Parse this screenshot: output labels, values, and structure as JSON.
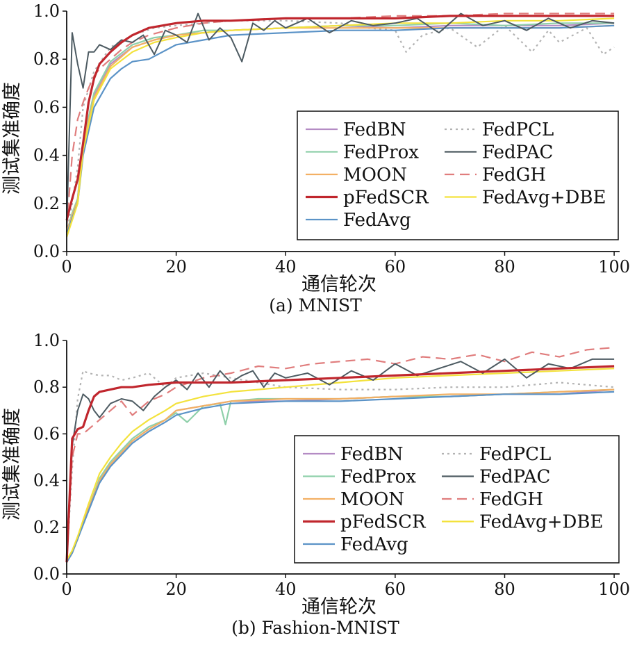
{
  "chart_data": [
    {
      "type": "line",
      "caption": "(a) MNIST",
      "xlabel": "通信轮次",
      "ylabel": "测试集准确度",
      "xlim": [
        0,
        101
      ],
      "ylim": [
        0,
        1.0
      ],
      "xticks": [
        0,
        20,
        40,
        60,
        80,
        100
      ],
      "yticks": [
        "0.0",
        "0.2",
        "0.4",
        "0.6",
        "0.8",
        "1.0"
      ],
      "grid": false,
      "legend_position": "bottom-right",
      "series": [
        {
          "name": "FedBN",
          "color": "#b48cc4",
          "style": "solid",
          "x": [
            0,
            1,
            2,
            3,
            5,
            8,
            12,
            16,
            20,
            25,
            30,
            40,
            50,
            60,
            70,
            80,
            90,
            100
          ],
          "y": [
            0.08,
            0.15,
            0.22,
            0.45,
            0.65,
            0.78,
            0.85,
            0.88,
            0.9,
            0.91,
            0.92,
            0.93,
            0.94,
            0.93,
            0.94,
            0.94,
            0.94,
            0.95
          ]
        },
        {
          "name": "FedProx",
          "color": "#8fd0aa",
          "style": "solid",
          "x": [
            0,
            1,
            2,
            3,
            5,
            8,
            12,
            16,
            20,
            25,
            30,
            40,
            50,
            60,
            70,
            80,
            90,
            100
          ],
          "y": [
            0.08,
            0.16,
            0.22,
            0.46,
            0.66,
            0.79,
            0.86,
            0.89,
            0.9,
            0.92,
            0.92,
            0.93,
            0.94,
            0.94,
            0.95,
            0.94,
            0.95,
            0.95
          ]
        },
        {
          "name": "MOON",
          "color": "#f3b064",
          "style": "solid",
          "x": [
            0,
            1,
            2,
            3,
            5,
            8,
            12,
            16,
            20,
            25,
            30,
            40,
            50,
            60,
            70,
            80,
            90,
            100
          ],
          "y": [
            0.08,
            0.15,
            0.21,
            0.44,
            0.64,
            0.77,
            0.85,
            0.88,
            0.9,
            0.91,
            0.92,
            0.93,
            0.93,
            0.93,
            0.93,
            0.93,
            0.93,
            0.94
          ]
        },
        {
          "name": "pFedSCR",
          "color": "#c0262d",
          "style": "solid",
          "x": [
            0,
            1,
            2,
            3,
            4,
            5,
            6,
            8,
            10,
            12,
            15,
            20,
            25,
            30,
            40,
            50,
            60,
            70,
            80,
            90,
            100
          ],
          "y": [
            0.13,
            0.22,
            0.3,
            0.45,
            0.62,
            0.72,
            0.78,
            0.83,
            0.87,
            0.9,
            0.93,
            0.95,
            0.96,
            0.96,
            0.97,
            0.97,
            0.97,
            0.98,
            0.98,
            0.98,
            0.98
          ]
        },
        {
          "name": "FedAvg",
          "color": "#5b93c7",
          "style": "solid",
          "x": [
            0,
            1,
            2,
            3,
            5,
            8,
            10,
            12,
            15,
            20,
            25,
            30,
            40,
            50,
            60,
            70,
            80,
            90,
            100
          ],
          "y": [
            0.07,
            0.14,
            0.2,
            0.4,
            0.6,
            0.72,
            0.76,
            0.79,
            0.8,
            0.86,
            0.88,
            0.9,
            0.91,
            0.92,
            0.92,
            0.93,
            0.93,
            0.93,
            0.94
          ]
        },
        {
          "name": "FedPCL",
          "color": "#b3b3b3",
          "style": "dotted",
          "x": [
            0,
            1,
            2,
            3,
            5,
            8,
            12,
            16,
            20,
            25,
            30,
            40,
            50,
            55,
            60,
            62,
            65,
            70,
            75,
            80,
            85,
            88,
            90,
            95,
            98,
            100
          ],
          "y": [
            0.08,
            0.2,
            0.35,
            0.6,
            0.75,
            0.85,
            0.9,
            0.93,
            0.94,
            0.95,
            0.96,
            0.96,
            0.95,
            0.93,
            0.92,
            0.83,
            0.9,
            0.93,
            0.85,
            0.94,
            0.83,
            0.92,
            0.87,
            0.93,
            0.82,
            0.85
          ]
        },
        {
          "name": "FedPAC",
          "color": "#4d5b62",
          "style": "solid",
          "x": [
            0,
            1,
            2,
            3,
            4,
            5,
            6,
            8,
            10,
            12,
            14,
            16,
            18,
            20,
            22,
            24,
            26,
            28,
            30,
            32,
            34,
            36,
            38,
            40,
            44,
            48,
            52,
            56,
            60,
            64,
            68,
            72,
            76,
            80,
            84,
            88,
            92,
            96,
            100
          ],
          "y": [
            0.1,
            0.91,
            0.78,
            0.68,
            0.83,
            0.83,
            0.86,
            0.84,
            0.88,
            0.87,
            0.9,
            0.82,
            0.92,
            0.9,
            0.87,
            0.99,
            0.88,
            0.93,
            0.89,
            0.79,
            0.95,
            0.92,
            0.96,
            0.93,
            0.97,
            0.91,
            0.96,
            0.94,
            0.95,
            0.97,
            0.91,
            0.99,
            0.94,
            0.96,
            0.92,
            0.97,
            0.93,
            0.96,
            0.95
          ]
        },
        {
          "name": "FedGH",
          "color": "#e07d7d",
          "style": "dashed",
          "x": [
            0,
            1,
            2,
            3,
            4,
            5,
            6,
            8,
            10,
            12,
            15,
            20,
            25,
            30,
            40,
            50,
            60,
            70,
            80,
            90,
            100
          ],
          "y": [
            0.1,
            0.4,
            0.55,
            0.62,
            0.68,
            0.73,
            0.76,
            0.8,
            0.84,
            0.87,
            0.9,
            0.93,
            0.95,
            0.96,
            0.97,
            0.97,
            0.98,
            0.98,
            0.99,
            0.99,
            0.99
          ]
        },
        {
          "name": "FedAvg+DBE",
          "color": "#f3e23c",
          "style": "solid",
          "x": [
            0,
            1,
            2,
            3,
            5,
            8,
            12,
            16,
            20,
            25,
            30,
            40,
            50,
            60,
            70,
            80,
            90,
            100
          ],
          "y": [
            0.06,
            0.13,
            0.2,
            0.42,
            0.63,
            0.76,
            0.83,
            0.87,
            0.89,
            0.91,
            0.92,
            0.93,
            0.94,
            0.95,
            0.95,
            0.96,
            0.96,
            0.97
          ]
        }
      ]
    },
    {
      "type": "line",
      "caption": "(b) Fashion-MNIST",
      "xlabel": "通信轮次",
      "ylabel": "测试集准确度",
      "xlim": [
        0,
        101
      ],
      "ylim": [
        0,
        1.0
      ],
      "xticks": [
        0,
        20,
        40,
        60,
        80,
        100
      ],
      "yticks": [
        "0.0",
        "0.2",
        "0.4",
        "0.6",
        "0.8",
        "1.0"
      ],
      "grid": false,
      "legend_position": "bottom-right",
      "series": [
        {
          "name": "FedBN",
          "color": "#b48cc4",
          "style": "solid",
          "x": [
            0,
            1,
            2,
            4,
            6,
            8,
            10,
            12,
            15,
            18,
            20,
            25,
            30,
            40,
            50,
            60,
            70,
            80,
            90,
            100
          ],
          "y": [
            0.05,
            0.09,
            0.15,
            0.28,
            0.4,
            0.47,
            0.52,
            0.57,
            0.62,
            0.66,
            0.7,
            0.72,
            0.74,
            0.74,
            0.75,
            0.76,
            0.76,
            0.77,
            0.77,
            0.79
          ]
        },
        {
          "name": "FedProx",
          "color": "#8fd0aa",
          "style": "solid",
          "x": [
            0,
            1,
            2,
            4,
            6,
            8,
            10,
            12,
            15,
            18,
            20,
            22,
            25,
            28,
            29,
            30,
            35,
            40,
            50,
            60,
            70,
            80,
            90,
            100
          ],
          "y": [
            0.05,
            0.09,
            0.15,
            0.28,
            0.41,
            0.48,
            0.53,
            0.58,
            0.63,
            0.66,
            0.69,
            0.65,
            0.72,
            0.73,
            0.64,
            0.74,
            0.75,
            0.75,
            0.75,
            0.76,
            0.76,
            0.77,
            0.78,
            0.79
          ]
        },
        {
          "name": "MOON",
          "color": "#f3b064",
          "style": "solid",
          "x": [
            0,
            1,
            2,
            4,
            6,
            8,
            10,
            12,
            15,
            18,
            20,
            25,
            30,
            40,
            50,
            60,
            70,
            80,
            90,
            100
          ],
          "y": [
            0.05,
            0.09,
            0.15,
            0.28,
            0.4,
            0.47,
            0.52,
            0.57,
            0.62,
            0.66,
            0.7,
            0.72,
            0.74,
            0.75,
            0.75,
            0.76,
            0.77,
            0.77,
            0.78,
            0.79
          ]
        },
        {
          "name": "pFedSCR",
          "color": "#c0262d",
          "style": "solid",
          "x": [
            0,
            1,
            2,
            3,
            4,
            5,
            6,
            8,
            10,
            12,
            15,
            20,
            25,
            30,
            40,
            50,
            60,
            70,
            80,
            90,
            100
          ],
          "y": [
            0.05,
            0.58,
            0.62,
            0.63,
            0.7,
            0.76,
            0.78,
            0.79,
            0.8,
            0.8,
            0.81,
            0.82,
            0.82,
            0.82,
            0.83,
            0.84,
            0.85,
            0.86,
            0.87,
            0.88,
            0.89
          ]
        },
        {
          "name": "FedAvg",
          "color": "#5b93c7",
          "style": "solid",
          "x": [
            0,
            1,
            2,
            4,
            6,
            8,
            10,
            12,
            15,
            18,
            20,
            25,
            30,
            40,
            50,
            60,
            70,
            80,
            90,
            100
          ],
          "y": [
            0.05,
            0.09,
            0.15,
            0.27,
            0.39,
            0.46,
            0.51,
            0.56,
            0.61,
            0.65,
            0.68,
            0.71,
            0.73,
            0.74,
            0.74,
            0.75,
            0.76,
            0.77,
            0.77,
            0.78
          ]
        },
        {
          "name": "FedPCL",
          "color": "#b3b3b3",
          "style": "dotted",
          "x": [
            0,
            1,
            2,
            3,
            4,
            6,
            8,
            10,
            12,
            15,
            18,
            20,
            25,
            30,
            40,
            50,
            60,
            70,
            80,
            90,
            100
          ],
          "y": [
            0.05,
            0.45,
            0.75,
            0.87,
            0.86,
            0.85,
            0.85,
            0.83,
            0.84,
            0.86,
            0.8,
            0.84,
            0.86,
            0.84,
            0.8,
            0.79,
            0.79,
            0.8,
            0.8,
            0.82,
            0.8
          ]
        },
        {
          "name": "FedPAC",
          "color": "#4d5b62",
          "style": "solid",
          "x": [
            0,
            1,
            2,
            3,
            4,
            5,
            6,
            8,
            10,
            12,
            14,
            16,
            18,
            20,
            22,
            24,
            26,
            28,
            30,
            32,
            34,
            36,
            38,
            40,
            44,
            48,
            52,
            56,
            60,
            64,
            68,
            72,
            76,
            80,
            84,
            88,
            92,
            96,
            100
          ],
          "y": [
            0.05,
            0.55,
            0.7,
            0.77,
            0.75,
            0.7,
            0.67,
            0.73,
            0.75,
            0.74,
            0.7,
            0.76,
            0.8,
            0.83,
            0.79,
            0.86,
            0.8,
            0.87,
            0.82,
            0.85,
            0.87,
            0.8,
            0.86,
            0.84,
            0.86,
            0.81,
            0.87,
            0.83,
            0.9,
            0.85,
            0.88,
            0.91,
            0.86,
            0.92,
            0.84,
            0.9,
            0.88,
            0.92,
            0.92
          ]
        },
        {
          "name": "FedGH",
          "color": "#e07d7d",
          "style": "dashed",
          "x": [
            0,
            1,
            2,
            3,
            4,
            6,
            8,
            10,
            12,
            15,
            18,
            20,
            25,
            30,
            35,
            40,
            45,
            50,
            55,
            60,
            65,
            70,
            75,
            80,
            85,
            90,
            95,
            100
          ],
          "y": [
            0.05,
            0.5,
            0.6,
            0.6,
            0.62,
            0.66,
            0.7,
            0.74,
            0.68,
            0.74,
            0.77,
            0.8,
            0.84,
            0.86,
            0.89,
            0.88,
            0.9,
            0.91,
            0.92,
            0.9,
            0.93,
            0.92,
            0.94,
            0.91,
            0.95,
            0.93,
            0.96,
            0.97
          ]
        },
        {
          "name": "FedAvg+DBE",
          "color": "#f3e23c",
          "style": "solid",
          "x": [
            0,
            1,
            2,
            4,
            6,
            8,
            10,
            12,
            15,
            18,
            20,
            25,
            30,
            35,
            40,
            50,
            60,
            70,
            80,
            90,
            100
          ],
          "y": [
            0.06,
            0.1,
            0.16,
            0.3,
            0.43,
            0.5,
            0.56,
            0.61,
            0.66,
            0.7,
            0.73,
            0.76,
            0.78,
            0.79,
            0.8,
            0.82,
            0.84,
            0.85,
            0.86,
            0.87,
            0.88
          ]
        }
      ]
    }
  ]
}
